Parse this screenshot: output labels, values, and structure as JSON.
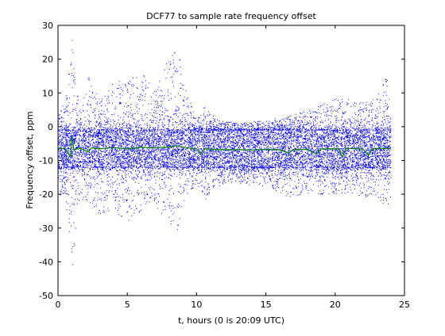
{
  "chart_data": {
    "type": "scatter",
    "title": "DCF77 to sample rate frequency offset",
    "xlabel": "t, hours (0 is 20:09 UTC)",
    "ylabel": "Frequency offset, ppm",
    "xlim": [
      0,
      25
    ],
    "ylim": [
      -50,
      30
    ],
    "xticks": [
      0,
      5,
      10,
      15,
      20,
      25
    ],
    "yticks": [
      -50,
      -40,
      -30,
      -20,
      -10,
      0,
      10,
      20,
      30
    ],
    "xtick_labels": [
      "0",
      "5",
      "10",
      "15",
      "20",
      "25"
    ],
    "ytick_labels": [
      "-50",
      "-40",
      "-30",
      "-20",
      "-10",
      "0",
      "10",
      "20",
      "30"
    ],
    "grid": false,
    "legend": "none",
    "x_data_range": [
      0,
      24
    ],
    "series": [
      {
        "kind": "scatter-dots",
        "color": "#0000ff",
        "core_band": [
          -12,
          -1
        ],
        "center": -6.5,
        "envelope": [
          {
            "x": 0.0,
            "lo": -22,
            "hi": 8
          },
          {
            "x": 0.5,
            "lo": -20,
            "hi": 5
          },
          {
            "x": 1.0,
            "lo": -42,
            "hi": 28
          },
          {
            "x": 1.5,
            "lo": -22,
            "hi": 5
          },
          {
            "x": 2.2,
            "lo": -22,
            "hi": 15
          },
          {
            "x": 3.0,
            "lo": -26,
            "hi": 8
          },
          {
            "x": 4.0,
            "lo": -26,
            "hi": 13
          },
          {
            "x": 5.0,
            "lo": -28,
            "hi": 14
          },
          {
            "x": 6.0,
            "lo": -25,
            "hi": 16
          },
          {
            "x": 7.0,
            "lo": -24,
            "hi": 11
          },
          {
            "x": 8.0,
            "lo": -28,
            "hi": 21
          },
          {
            "x": 8.6,
            "lo": -33,
            "hi": 24
          },
          {
            "x": 9.3,
            "lo": -20,
            "hi": 10
          },
          {
            "x": 10.0,
            "lo": -17,
            "hi": 2
          },
          {
            "x": 10.5,
            "lo": -22,
            "hi": 6
          },
          {
            "x": 11.5,
            "lo": -18,
            "hi": 2
          },
          {
            "x": 13.0,
            "lo": -17,
            "hi": 1
          },
          {
            "x": 15.0,
            "lo": -18,
            "hi": 2
          },
          {
            "x": 16.5,
            "lo": -21,
            "hi": 3
          },
          {
            "x": 18.0,
            "lo": -20,
            "hi": 5
          },
          {
            "x": 19.0,
            "lo": -20,
            "hi": 7
          },
          {
            "x": 20.5,
            "lo": -20,
            "hi": 9
          },
          {
            "x": 22.0,
            "lo": -21,
            "hi": 7
          },
          {
            "x": 23.0,
            "lo": -21,
            "hi": 9
          },
          {
            "x": 23.7,
            "lo": -24,
            "hi": 15
          },
          {
            "x": 24.0,
            "lo": -22,
            "hi": 8
          }
        ]
      },
      {
        "kind": "line",
        "color": "#008000",
        "points": [
          {
            "x": 0,
            "y": -6.5
          },
          {
            "x": 0.5,
            "y": -6.4
          },
          {
            "x": 0.9,
            "y": -9
          },
          {
            "x": 1.0,
            "y": -3
          },
          {
            "x": 1.15,
            "y": -7
          },
          {
            "x": 1.5,
            "y": -6.2
          },
          {
            "x": 2.2,
            "y": -7.5
          },
          {
            "x": 2.4,
            "y": -6.3
          },
          {
            "x": 3,
            "y": -6.5
          },
          {
            "x": 4,
            "y": -6.2
          },
          {
            "x": 5,
            "y": -6.6
          },
          {
            "x": 6,
            "y": -6.1
          },
          {
            "x": 7,
            "y": -6.3
          },
          {
            "x": 8,
            "y": -6.0
          },
          {
            "x": 8.6,
            "y": -5.6
          },
          {
            "x": 9.2,
            "y": -6.2
          },
          {
            "x": 10,
            "y": -6.6
          },
          {
            "x": 10.3,
            "y": -8
          },
          {
            "x": 10.6,
            "y": -6.5
          },
          {
            "x": 11.5,
            "y": -6.8
          },
          {
            "x": 13,
            "y": -6.8
          },
          {
            "x": 14,
            "y": -6.9
          },
          {
            "x": 15,
            "y": -6.7
          },
          {
            "x": 16,
            "y": -6.8
          },
          {
            "x": 16.6,
            "y": -7.8
          },
          {
            "x": 17,
            "y": -6.8
          },
          {
            "x": 18,
            "y": -6.7
          },
          {
            "x": 18.6,
            "y": -8
          },
          {
            "x": 19,
            "y": -6.6
          },
          {
            "x": 20.3,
            "y": -6.5
          },
          {
            "x": 20.5,
            "y": -9
          },
          {
            "x": 20.8,
            "y": -6.4
          },
          {
            "x": 22,
            "y": -6.6
          },
          {
            "x": 22.4,
            "y": -8.5
          },
          {
            "x": 22.7,
            "y": -6.5
          },
          {
            "x": 23.5,
            "y": -6.4
          },
          {
            "x": 24,
            "y": -6.5
          }
        ]
      }
    ]
  }
}
